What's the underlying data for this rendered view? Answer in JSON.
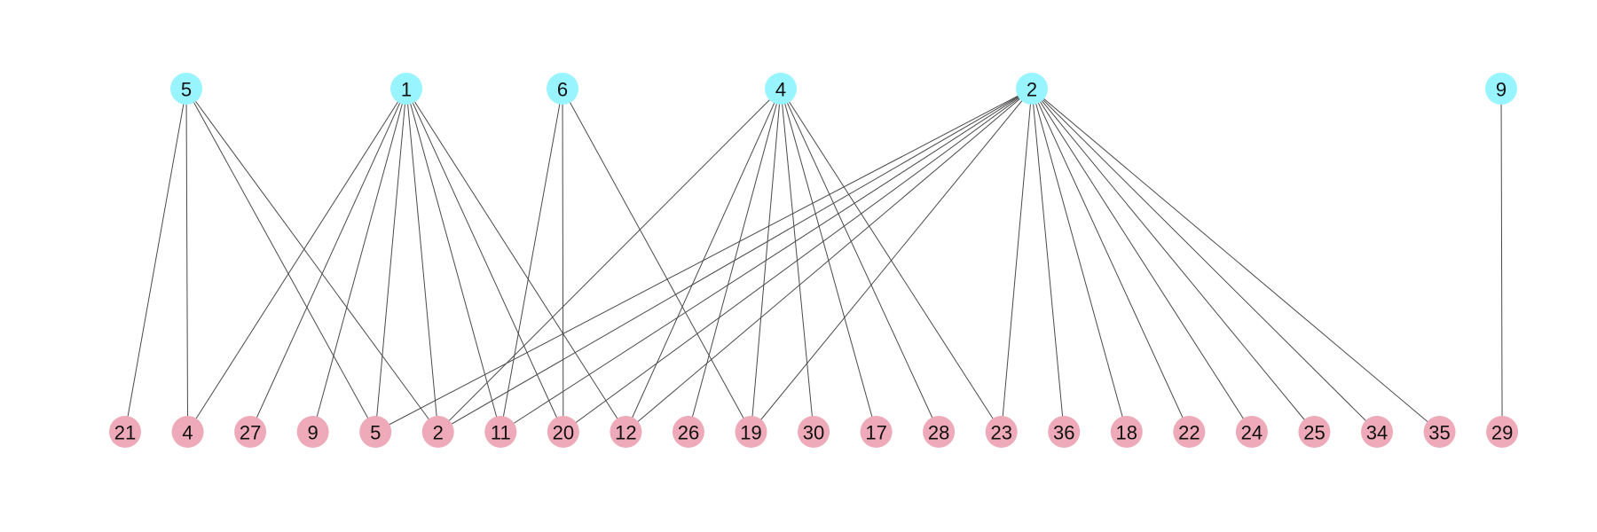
{
  "colors": {
    "top_node": "#98f5ff",
    "bottom_node": "#eeaab8",
    "edge": "#4a4a4a"
  },
  "top_nodes": [
    {
      "id": "t5",
      "label": "5"
    },
    {
      "id": "t1",
      "label": "1"
    },
    {
      "id": "t6",
      "label": "6"
    },
    {
      "id": "t4",
      "label": "4"
    },
    {
      "id": "t2",
      "label": "2"
    },
    {
      "id": "t9",
      "label": "9"
    }
  ],
  "bottom_nodes": [
    {
      "id": "b21",
      "label": "21"
    },
    {
      "id": "b4",
      "label": "4"
    },
    {
      "id": "b27",
      "label": "27"
    },
    {
      "id": "b9",
      "label": "9"
    },
    {
      "id": "b5",
      "label": "5"
    },
    {
      "id": "b2",
      "label": "2"
    },
    {
      "id": "b11",
      "label": "11"
    },
    {
      "id": "b20",
      "label": "20"
    },
    {
      "id": "b12",
      "label": "12"
    },
    {
      "id": "b26",
      "label": "26"
    },
    {
      "id": "b19",
      "label": "19"
    },
    {
      "id": "b30",
      "label": "30"
    },
    {
      "id": "b17",
      "label": "17"
    },
    {
      "id": "b28",
      "label": "28"
    },
    {
      "id": "b23",
      "label": "23"
    },
    {
      "id": "b36",
      "label": "36"
    },
    {
      "id": "b18",
      "label": "18"
    },
    {
      "id": "b22",
      "label": "22"
    },
    {
      "id": "b24",
      "label": "24"
    },
    {
      "id": "b25",
      "label": "25"
    },
    {
      "id": "b34",
      "label": "34"
    },
    {
      "id": "b35",
      "label": "35"
    },
    {
      "id": "b29",
      "label": "29"
    }
  ],
  "edges": [
    [
      "t5",
      "b21"
    ],
    [
      "t5",
      "b4"
    ],
    [
      "t5",
      "b5"
    ],
    [
      "t5",
      "b2"
    ],
    [
      "t1",
      "b4"
    ],
    [
      "t1",
      "b27"
    ],
    [
      "t1",
      "b9"
    ],
    [
      "t1",
      "b5"
    ],
    [
      "t1",
      "b2"
    ],
    [
      "t1",
      "b11"
    ],
    [
      "t1",
      "b20"
    ],
    [
      "t1",
      "b12"
    ],
    [
      "t6",
      "b11"
    ],
    [
      "t6",
      "b20"
    ],
    [
      "t6",
      "b19"
    ],
    [
      "t4",
      "b2"
    ],
    [
      "t4",
      "b12"
    ],
    [
      "t4",
      "b26"
    ],
    [
      "t4",
      "b19"
    ],
    [
      "t4",
      "b30"
    ],
    [
      "t4",
      "b17"
    ],
    [
      "t4",
      "b28"
    ],
    [
      "t4",
      "b23"
    ],
    [
      "t2",
      "b5"
    ],
    [
      "t2",
      "b2"
    ],
    [
      "t2",
      "b11"
    ],
    [
      "t2",
      "b20"
    ],
    [
      "t2",
      "b12"
    ],
    [
      "t2",
      "b19"
    ],
    [
      "t2",
      "b23"
    ],
    [
      "t2",
      "b36"
    ],
    [
      "t2",
      "b18"
    ],
    [
      "t2",
      "b22"
    ],
    [
      "t2",
      "b24"
    ],
    [
      "t2",
      "b25"
    ],
    [
      "t2",
      "b34"
    ],
    [
      "t2",
      "b35"
    ],
    [
      "t9",
      "b29"
    ]
  ]
}
